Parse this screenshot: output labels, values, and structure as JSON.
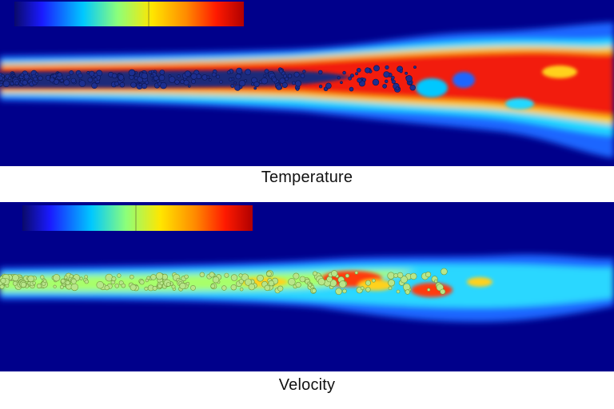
{
  "panels": [
    {
      "caption": "Temperature",
      "colorbar": {
        "stops": [
          "#08085e",
          "#1a1aff",
          "#00c8ff",
          "#8cff7a",
          "#ffe600",
          "#ff8a00",
          "#ff1a00",
          "#b00000"
        ]
      },
      "colors": {
        "background": "#00008b",
        "jet_outer": "#1f66ff",
        "jet_mid": "#21d8ff",
        "jet_warm": "#ffd21a",
        "jet_hot": "#f21c0f",
        "core": "#1a2a7a",
        "particles": "#1d2f8f"
      }
    },
    {
      "caption": "Velocity",
      "colorbar": {
        "stops": [
          "#08085e",
          "#1a1aff",
          "#00c8ff",
          "#8cff7a",
          "#ffe600",
          "#ff8a00",
          "#ff1a00",
          "#b00000"
        ]
      },
      "colors": {
        "background": "#00008b",
        "jet_outer": "#1f66ff",
        "jet_mid": "#2ad7ff",
        "jet_warm": "#a8ff6a",
        "jet_hot": "#ff3a10",
        "particles": "#b8e68a"
      }
    }
  ]
}
